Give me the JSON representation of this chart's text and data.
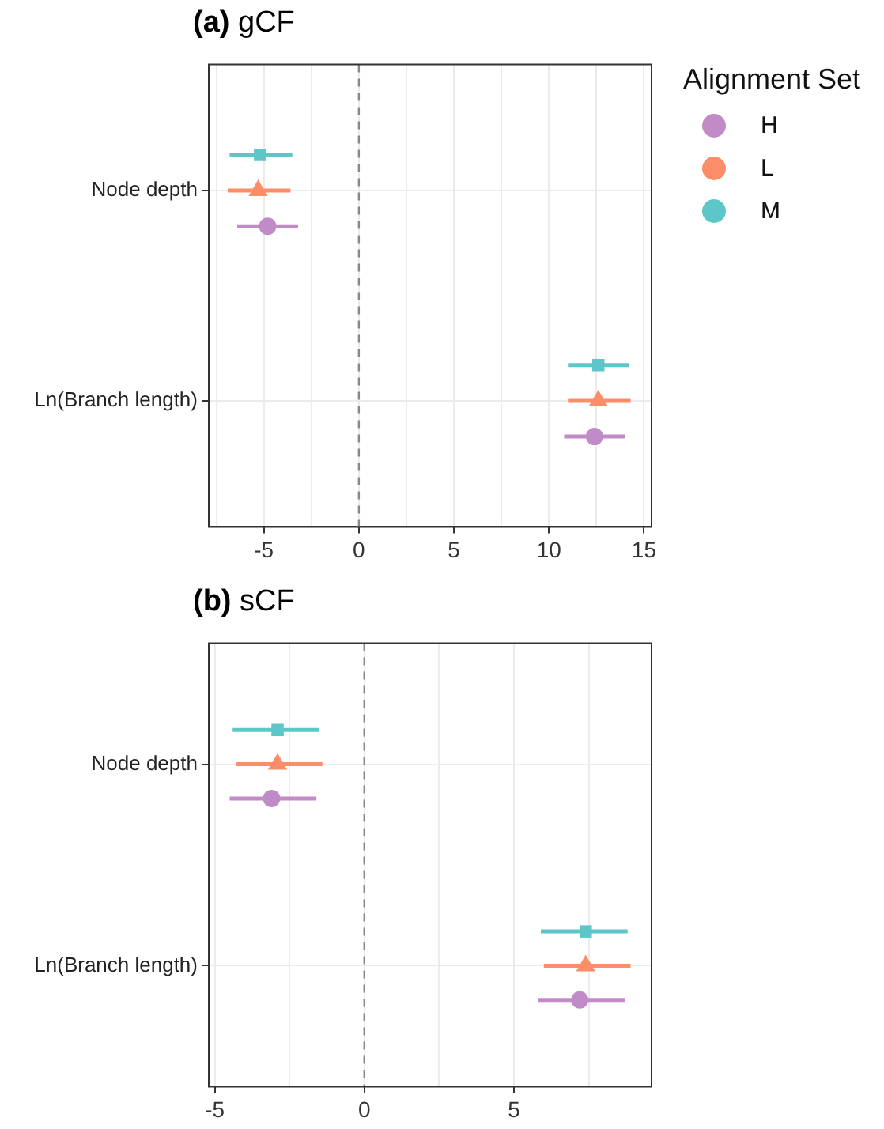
{
  "chart_data": [
    {
      "type": "scatter",
      "orientation": "horizontal",
      "title": "(a) gCF",
      "legend_title": "Alignment Set",
      "legend": "right",
      "categories": [
        "Node depth",
        "Ln(Branch length)"
      ],
      "series": [
        {
          "name": "H",
          "color": "#c18bc7",
          "marker": "circle",
          "values": [
            -4.8,
            12.4
          ],
          "errors": [
            [
              -6.4,
              -3.2
            ],
            [
              10.8,
              14.0
            ]
          ]
        },
        {
          "name": "L",
          "color": "#fb8d68",
          "marker": "triangle",
          "values": [
            -5.3,
            12.6
          ],
          "errors": [
            [
              -6.9,
              -3.6
            ],
            [
              11.0,
              14.3
            ]
          ]
        },
        {
          "name": "M",
          "color": "#5cc6c8",
          "marker": "square",
          "values": [
            -5.2,
            12.6
          ],
          "errors": [
            [
              -6.8,
              -3.5
            ],
            [
              11.0,
              14.2
            ]
          ]
        }
      ],
      "xlim": [
        -7.9,
        15.4
      ],
      "xticks": [
        {
          "value": -7.5,
          "label": null
        },
        -5,
        {
          "value": -2.5,
          "label": null
        },
        0,
        {
          "value": 2.5,
          "label": null
        },
        5,
        {
          "value": 7.5,
          "label": null
        },
        10,
        {
          "value": 12.5,
          "label": null
        },
        15
      ],
      "ref_lines": [
        {
          "axis": "x",
          "value": 0,
          "color": "#888888",
          "line_style": "dashed"
        }
      ],
      "grid": true
    },
    {
      "type": "scatter",
      "orientation": "horizontal",
      "title": "(b) sCF",
      "legend": false,
      "categories": [
        "Node depth",
        "Ln(Branch length)"
      ],
      "series": [
        {
          "color": "#c18bc7",
          "marker": "circle",
          "values": [
            -3.1,
            7.2
          ],
          "errors": [
            [
              -4.5,
              -1.6
            ],
            [
              5.8,
              8.7
            ]
          ]
        },
        {
          "color": "#fb8d68",
          "marker": "triangle",
          "values": [
            -2.9,
            7.4
          ],
          "errors": [
            [
              -4.3,
              -1.4
            ],
            [
              6.0,
              8.9
            ]
          ]
        },
        {
          "color": "#5cc6c8",
          "marker": "square",
          "values": [
            -2.9,
            7.4
          ],
          "errors": [
            [
              -4.4,
              -1.5
            ],
            [
              5.9,
              8.8
            ]
          ]
        }
      ],
      "xlim": [
        -5.2,
        9.6
      ],
      "xticks": [
        -5,
        {
          "value": -2.5,
          "label": null
        },
        0,
        {
          "value": 2.5,
          "label": null
        },
        5,
        {
          "value": 7.5,
          "label": null
        }
      ],
      "ref_lines": [
        {
          "axis": "x",
          "value": 0,
          "color": "#888888",
          "line_style": "dashed"
        }
      ],
      "grid": true
    }
  ]
}
